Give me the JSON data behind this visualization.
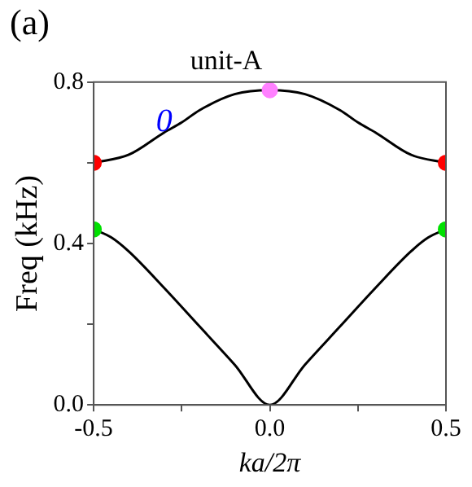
{
  "chart_data": {
    "type": "line",
    "title": "unit-A",
    "xlabel": "ka/2π",
    "ylabel": "Freq (kHz)",
    "xlim": [
      -0.5,
      0.5
    ],
    "xticks": [
      -0.5,
      {
        "value": -0.25,
        "label": null
      },
      {
        "value": 0,
        "label": "0.0"
      },
      {
        "value": 0.25,
        "label": null
      },
      0.5
    ],
    "ylim": [
      0,
      0.8
    ],
    "yticks": [
      {
        "value": 0,
        "label": "0.0"
      },
      {
        "value": 0.2,
        "label": null
      },
      0.4,
      {
        "value": 0.6,
        "label": null
      },
      0.8
    ],
    "grid": false,
    "legend": false,
    "annotations": [
      "(a)",
      {
        "text": "0",
        "x": -0.3,
        "y": 0.7
      }
    ],
    "series": [
      {
        "type": "line",
        "color": "#000000",
        "marker": "none",
        "x": [
          -0.5,
          -0.4,
          -0.3,
          -0.25,
          -0.2,
          -0.1,
          0,
          0.1,
          0.2,
          0.25,
          0.3,
          0.4,
          0.5
        ],
        "values": [
          0.6,
          0.62,
          0.675,
          0.7,
          0.73,
          0.77,
          0.78,
          0.77,
          0.73,
          0.7,
          0.675,
          0.62,
          0.6
        ]
      },
      {
        "type": "line",
        "color": "#000000",
        "marker": "none",
        "x": [
          -0.5,
          -0.45,
          -0.4,
          -0.3,
          -0.2,
          -0.1,
          0,
          0.1,
          0.2,
          0.3,
          0.4,
          0.45,
          0.5
        ],
        "values": [
          0.435,
          0.415,
          0.38,
          0.29,
          0.195,
          0.1,
          0,
          0.1,
          0.195,
          0.29,
          0.38,
          0.415,
          0.435
        ]
      },
      {
        "type": "scatter",
        "marker": "circle",
        "x": [
          -0.5,
          0,
          0.5,
          -0.5,
          0.5
        ],
        "values": [
          0.6,
          0.78,
          0.6,
          0.435,
          0.435
        ],
        "colors": [
          "#ff0000",
          "#ff80ff",
          "#ff0000",
          "#00e000",
          "#00e000"
        ]
      }
    ]
  }
}
